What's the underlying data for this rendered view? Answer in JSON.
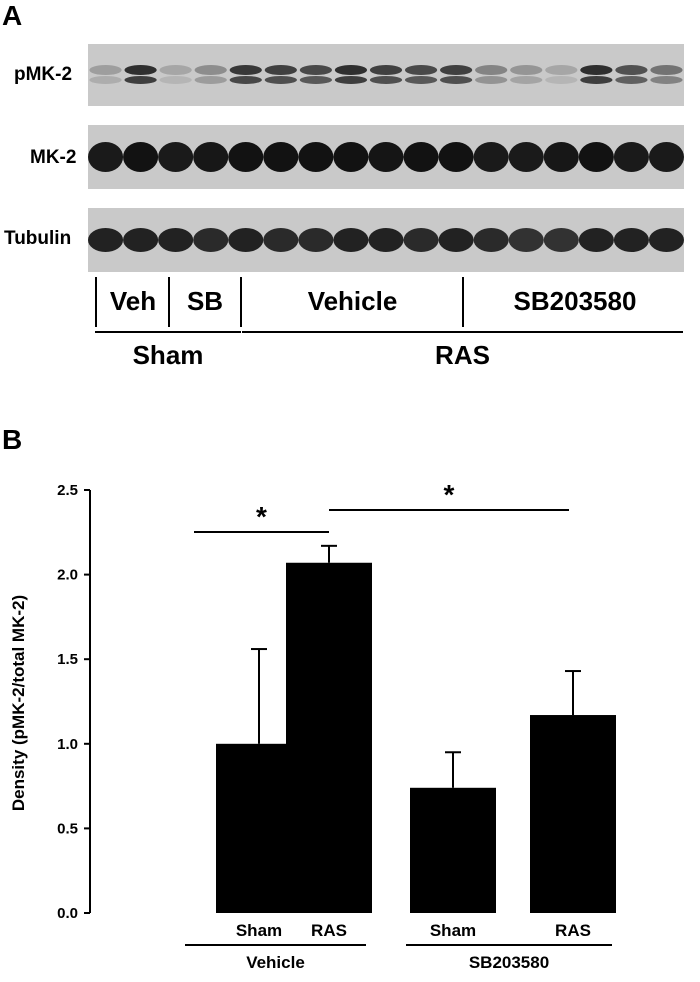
{
  "panel_a": {
    "letter": "A",
    "blots": [
      {
        "label": "pMK-2"
      },
      {
        "label": "MK-2"
      },
      {
        "label": "Tubulin"
      }
    ],
    "groups": {
      "veh": "Veh",
      "sb": "SB",
      "vehicle": "Vehicle",
      "sb203580": "SB203580",
      "sham": "Sham",
      "ras": "RAS"
    },
    "lane_count": 17
  },
  "panel_b": {
    "letter": "B"
  },
  "chart_data": {
    "type": "bar",
    "categories": [
      "Sham",
      "RAS",
      "Sham",
      "RAS"
    ],
    "groups": [
      {
        "label": "Vehicle",
        "categories": [
          "Sham",
          "RAS"
        ]
      },
      {
        "label": "SB203580",
        "categories": [
          "Sham",
          "RAS"
        ]
      }
    ],
    "values": [
      1.0,
      2.07,
      0.74,
      1.17
    ],
    "errors": [
      0.56,
      0.1,
      0.21,
      0.26
    ],
    "ylabel": "Density (pMK-2/total MK-2)",
    "ylim": [
      0,
      2.5
    ],
    "yticks": [
      "0.0",
      "0.5",
      "1.0",
      "1.5",
      "2.0",
      "2.5"
    ],
    "annotations": [
      {
        "text": "*",
        "from": 0,
        "to": 1
      },
      {
        "text": "*",
        "from": 1,
        "to": 3
      }
    ],
    "bar_color": "#000000",
    "grid": false
  }
}
